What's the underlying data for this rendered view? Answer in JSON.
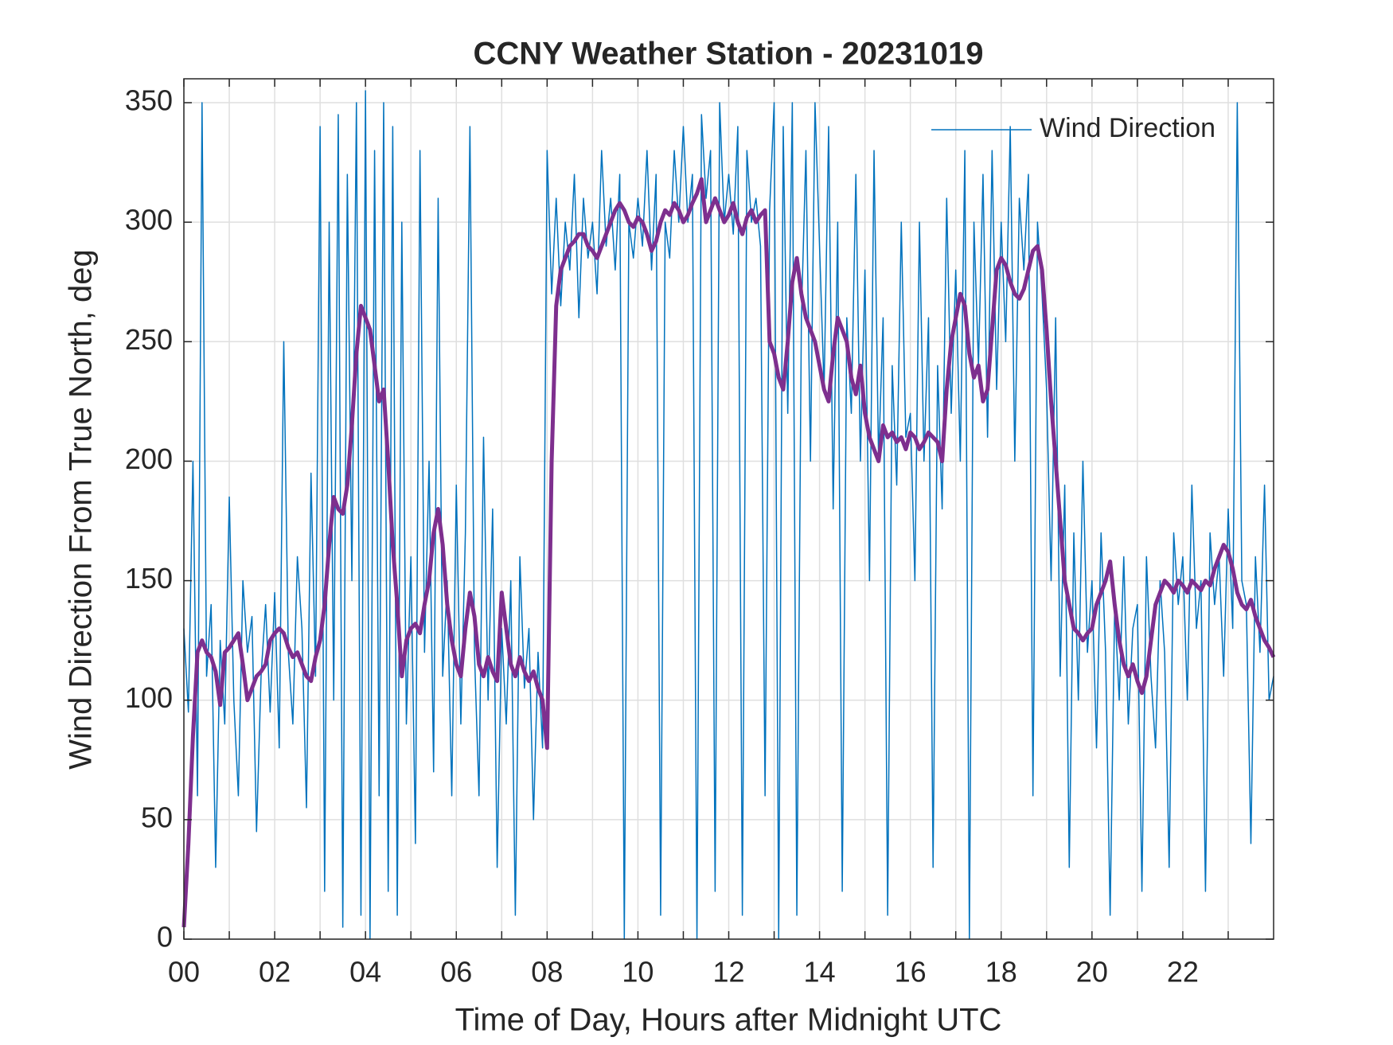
{
  "chart_data": {
    "type": "line",
    "title": "CCNY Weather Station - 20231019",
    "xlabel": "Time of Day, Hours after Midnight UTC",
    "ylabel": "Wind Direction From True North, deg",
    "xlim": [
      0,
      24
    ],
    "ylim": [
      0,
      360
    ],
    "xticks": [
      {
        "value": 0,
        "label": "00"
      },
      {
        "value": 2,
        "label": "02"
      },
      {
        "value": 4,
        "label": "04"
      },
      {
        "value": 6,
        "label": "06"
      },
      {
        "value": 8,
        "label": "08"
      },
      10,
      12,
      14,
      16,
      18,
      20,
      22
    ],
    "xminorticks": [
      1,
      3,
      5,
      7,
      9,
      11,
      13,
      15,
      17,
      19,
      21,
      23
    ],
    "yticks": [
      0,
      50,
      100,
      150,
      200,
      250,
      300,
      350
    ],
    "grid": true,
    "legend": "northeast",
    "x": [
      0,
      0.1,
      0.2,
      0.3,
      0.4,
      0.5,
      0.6,
      0.7,
      0.8,
      0.9,
      1,
      1.1,
      1.2,
      1.3,
      1.4,
      1.5,
      1.6,
      1.7,
      1.8,
      1.9,
      2,
      2.1,
      2.2,
      2.3,
      2.4,
      2.5,
      2.6,
      2.7,
      2.8,
      2.9,
      3,
      3.1,
      3.2,
      3.3,
      3.4,
      3.5,
      3.6,
      3.7,
      3.8,
      3.9,
      4,
      4.1,
      4.2,
      4.3,
      4.4,
      4.5,
      4.6,
      4.7,
      4.8,
      4.9,
      5,
      5.1,
      5.2,
      5.3,
      5.4,
      5.5,
      5.6,
      5.7,
      5.8,
      5.9,
      6,
      6.1,
      6.2,
      6.3,
      6.4,
      6.5,
      6.6,
      6.7,
      6.8,
      6.9,
      7,
      7.1,
      7.2,
      7.3,
      7.4,
      7.5,
      7.6,
      7.7,
      7.8,
      7.9,
      8,
      8.1,
      8.2,
      8.3,
      8.4,
      8.5,
      8.6,
      8.7,
      8.8,
      8.9,
      9,
      9.1,
      9.2,
      9.3,
      9.4,
      9.5,
      9.6,
      9.7,
      9.8,
      9.9,
      10,
      10.1,
      10.2,
      10.3,
      10.4,
      10.5,
      10.6,
      10.7,
      10.8,
      10.9,
      11,
      11.1,
      11.2,
      11.3,
      11.4,
      11.5,
      11.6,
      11.7,
      11.8,
      11.9,
      12,
      12.1,
      12.2,
      12.3,
      12.4,
      12.5,
      12.6,
      12.7,
      12.8,
      12.9,
      13,
      13.1,
      13.2,
      13.3,
      13.4,
      13.5,
      13.6,
      13.7,
      13.8,
      13.9,
      14,
      14.1,
      14.2,
      14.3,
      14.4,
      14.5,
      14.6,
      14.7,
      14.8,
      14.9,
      15,
      15.1,
      15.2,
      15.3,
      15.4,
      15.5,
      15.6,
      15.7,
      15.8,
      15.9,
      16,
      16.1,
      16.2,
      16.3,
      16.4,
      16.5,
      16.6,
      16.7,
      16.8,
      16.9,
      17,
      17.1,
      17.2,
      17.3,
      17.4,
      17.5,
      17.6,
      17.7,
      17.8,
      17.9,
      18,
      18.1,
      18.2,
      18.3,
      18.4,
      18.5,
      18.6,
      18.7,
      18.8,
      18.9,
      19,
      19.1,
      19.2,
      19.3,
      19.4,
      19.5,
      19.6,
      19.7,
      19.8,
      19.9,
      20,
      20.1,
      20.2,
      20.3,
      20.4,
      20.5,
      20.6,
      20.7,
      20.8,
      20.9,
      21,
      21.1,
      21.2,
      21.3,
      21.4,
      21.5,
      21.6,
      21.7,
      21.8,
      21.9,
      22,
      22.1,
      22.2,
      22.3,
      22.4,
      22.5,
      22.6,
      22.7,
      22.8,
      22.9,
      23,
      23.1,
      23.2,
      23.3,
      23.4,
      23.5,
      23.6,
      23.7,
      23.8,
      23.9,
      24
    ],
    "series": [
      {
        "name": "Wind Direction",
        "color": "#0072BD",
        "width": 1.5,
        "values": [
          130,
          95,
          200,
          60,
          350,
          110,
          140,
          30,
          125,
          90,
          185,
          100,
          60,
          150,
          120,
          135,
          45,
          110,
          140,
          95,
          145,
          80,
          250,
          120,
          90,
          160,
          130,
          55,
          195,
          110,
          340,
          20,
          300,
          100,
          345,
          5,
          320,
          150,
          350,
          10,
          355,
          0,
          330,
          60,
          350,
          20,
          340,
          10,
          300,
          90,
          160,
          40,
          330,
          120,
          200,
          70,
          310,
          110,
          150,
          60,
          190,
          90,
          170,
          340,
          120,
          60,
          210,
          100,
          180,
          30,
          130,
          90,
          150,
          10,
          160,
          105,
          130,
          50,
          120,
          80,
          330,
          270,
          310,
          265,
          300,
          280,
          320,
          260,
          310,
          285,
          300,
          270,
          330,
          290,
          310,
          280,
          320,
          0,
          300,
          285,
          310,
          290,
          330,
          280,
          320,
          10,
          300,
          285,
          330,
          300,
          340,
          300,
          320,
          0,
          345,
          310,
          330,
          20,
          350,
          300,
          320,
          295,
          340,
          10,
          330,
          300,
          310,
          290,
          60,
          305,
          350,
          0,
          340,
          220,
          350,
          10,
          260,
          330,
          200,
          350,
          290,
          230,
          340,
          180,
          300,
          20,
          260,
          220,
          320,
          200,
          280,
          150,
          330,
          200,
          260,
          10,
          240,
          190,
          300,
          210,
          220,
          150,
          300,
          200,
          260,
          30,
          240,
          180,
          310,
          220,
          280,
          200,
          330,
          0,
          300,
          240,
          320,
          210,
          330,
          230,
          300,
          250,
          340,
          200,
          310,
          280,
          320,
          60,
          300,
          270,
          230,
          150,
          260,
          110,
          190,
          30,
          170,
          100,
          200,
          120,
          150,
          80,
          170,
          120,
          10,
          140,
          100,
          160,
          90,
          130,
          140,
          20,
          160,
          110,
          80,
          150,
          120,
          30,
          170,
          140,
          160,
          100,
          190,
          130,
          150,
          20,
          170,
          140,
          160,
          110,
          180,
          130,
          350,
          150,
          140,
          40,
          160,
          120,
          190,
          100,
          110
        ]
      },
      {
        "color": "#7E2F8E",
        "width": 5,
        "values": [
          5,
          40,
          85,
          120,
          125,
          120,
          118,
          112,
          98,
          120,
          122,
          125,
          128,
          115,
          100,
          105,
          110,
          112,
          115,
          125,
          128,
          130,
          128,
          122,
          118,
          120,
          115,
          110,
          108,
          118,
          125,
          140,
          165,
          185,
          180,
          178,
          190,
          215,
          245,
          265,
          260,
          255,
          240,
          225,
          230,
          200,
          165,
          140,
          110,
          125,
          130,
          132,
          128,
          140,
          150,
          170,
          180,
          165,
          140,
          125,
          115,
          110,
          130,
          145,
          135,
          115,
          110,
          118,
          112,
          108,
          145,
          130,
          115,
          110,
          118,
          112,
          108,
          112,
          105,
          100,
          80,
          200,
          265,
          280,
          285,
          290,
          292,
          295,
          295,
          290,
          288,
          285,
          290,
          295,
          300,
          305,
          308,
          305,
          300,
          298,
          302,
          300,
          295,
          288,
          292,
          300,
          305,
          303,
          308,
          305,
          300,
          303,
          308,
          312,
          318,
          300,
          305,
          310,
          305,
          300,
          303,
          308,
          300,
          295,
          302,
          305,
          300,
          303,
          305,
          250,
          245,
          235,
          230,
          250,
          275,
          285,
          270,
          260,
          255,
          250,
          240,
          230,
          225,
          245,
          260,
          255,
          250,
          235,
          228,
          240,
          220,
          210,
          205,
          200,
          215,
          210,
          212,
          208,
          210,
          205,
          212,
          210,
          205,
          208,
          212,
          210,
          208,
          200,
          230,
          250,
          260,
          270,
          265,
          245,
          235,
          240,
          225,
          230,
          255,
          280,
          285,
          282,
          275,
          270,
          268,
          272,
          280,
          288,
          290,
          280,
          255,
          225,
          200,
          175,
          150,
          140,
          130,
          128,
          125,
          128,
          130,
          140,
          145,
          150,
          158,
          140,
          125,
          115,
          110,
          115,
          108,
          103,
          110,
          125,
          140,
          145,
          150,
          148,
          145,
          150,
          148,
          145,
          150,
          148,
          146,
          150,
          148,
          155,
          160,
          165,
          162,
          155,
          145,
          140,
          138,
          142,
          135,
          130,
          125,
          122,
          118
        ]
      }
    ]
  }
}
